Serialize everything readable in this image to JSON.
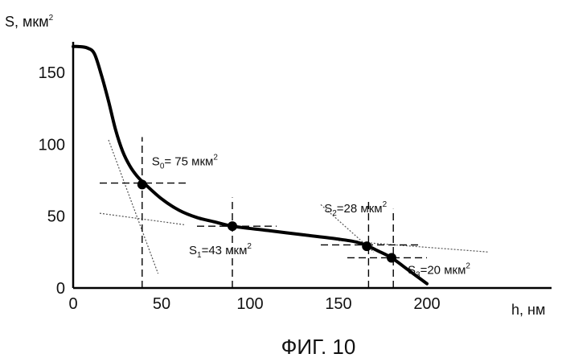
{
  "chart_data": {
    "type": "line",
    "ylabel": {
      "text": "S, мкм",
      "sup": "2"
    },
    "xlabel": "h, нм",
    "xlim": [
      0,
      250
    ],
    "ylim": [
      0,
      170
    ],
    "x_ticks": [
      0,
      50,
      100,
      150,
      200
    ],
    "y_ticks": [
      0,
      50,
      100,
      150
    ],
    "grid": false,
    "series": [
      {
        "x": [
          0,
          3,
          8,
          12,
          16,
          20,
          24,
          28,
          32,
          36,
          40,
          50,
          60,
          70,
          80,
          90,
          110,
          130,
          150,
          160,
          167,
          172,
          180,
          190,
          200
        ],
        "y": [
          168,
          168,
          167,
          163,
          148,
          130,
          110,
          95,
          85,
          78,
          73,
          62,
          54,
          49,
          46,
          43,
          40,
          37,
          34,
          32,
          29,
          26,
          21,
          12,
          3
        ]
      }
    ],
    "points": [
      {
        "x": 39,
        "y": 72,
        "label": {
          "pre": "S",
          "sub": "0",
          "mid": "= 75 мкм",
          "sup": "2"
        }
      },
      {
        "x": 90,
        "y": 43,
        "label": {
          "pre": "S",
          "sub": "1",
          "mid": "=43 мкм",
          "sup": "2"
        }
      },
      {
        "x": 166,
        "y": 29,
        "label": {
          "pre": "S",
          "sub": "2",
          "mid": "=28 мкм",
          "sup": "2"
        }
      },
      {
        "x": 180,
        "y": 21,
        "label": {
          "pre": "S",
          "sub": "3",
          "mid": "=20 мкм",
          "sup": "2"
        }
      }
    ],
    "tangent_lines": [
      {
        "x": [
          20,
          48
        ],
        "y": [
          103,
          10
        ]
      },
      {
        "x": [
          15,
          63
        ],
        "y": [
          52,
          44
        ]
      },
      {
        "x": [
          140,
          170
        ],
        "y": [
          58,
          25
        ]
      },
      {
        "x": [
          150,
          235
        ],
        "y": [
          33,
          25
        ]
      }
    ],
    "annotation_lines": [
      {
        "x": [
          15,
          65
        ],
        "y": [
          73,
          73
        ]
      },
      {
        "x": [
          39,
          39
        ],
        "y": [
          0,
          105
        ]
      },
      {
        "x": [
          70,
          115
        ],
        "y": [
          43,
          43
        ]
      },
      {
        "x": [
          90,
          90
        ],
        "y": [
          0,
          63
        ]
      },
      {
        "x": [
          140,
          195
        ],
        "y": [
          30,
          30
        ]
      },
      {
        "x": [
          167,
          167
        ],
        "y": [
          0,
          60
        ]
      },
      {
        "x": [
          155,
          200
        ],
        "y": [
          21,
          21
        ]
      },
      {
        "x": [
          181,
          181
        ],
        "y": [
          0,
          55
        ]
      }
    ]
  },
  "caption": "ФИГ. 10"
}
